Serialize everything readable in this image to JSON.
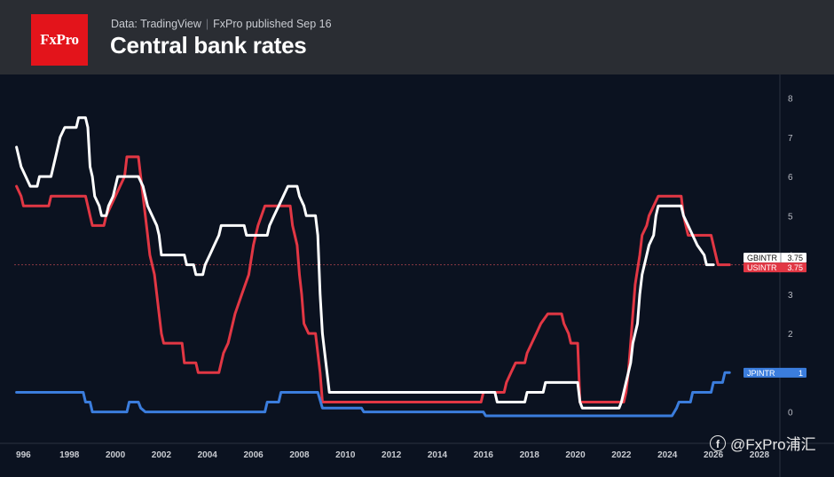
{
  "header": {
    "logo_text": "FxPro",
    "source": "Data: TradingView",
    "published": "FxPro published Sep 16",
    "title": "Central bank rates"
  },
  "watermark": "@FxPro浦汇",
  "colors": {
    "background": "#0b1220",
    "header_bg": "#2a2d33",
    "logo_red": "#e3141b",
    "gbintr": "#ffffff",
    "usintr": "#e23744",
    "jpintr": "#3b7ddd"
  },
  "chart_data": {
    "type": "line",
    "title": "Central bank rates",
    "xlim": [
      1995.6,
      2027.0
    ],
    "ylim": [
      -0.8,
      8.6
    ],
    "x_ticks": [
      "996",
      "1998",
      "2000",
      "2002",
      "2004",
      "2006",
      "2008",
      "2010",
      "2012",
      "2014",
      "2016",
      "2018",
      "2020",
      "2022",
      "2024",
      "2026",
      "2028"
    ],
    "y_ticks": [
      0,
      1,
      2,
      3,
      4,
      5,
      6,
      7,
      8
    ],
    "grid": false,
    "legend": "right-edge value tags",
    "series": [
      {
        "name": "GBINTR",
        "last_value": "3.75",
        "color": "#ffffff",
        "points": [
          [
            1995.7,
            6.75
          ],
          [
            1995.9,
            6.25
          ],
          [
            1996.1,
            6.0
          ],
          [
            1996.3,
            5.75
          ],
          [
            1996.6,
            5.75
          ],
          [
            1996.7,
            6.0
          ],
          [
            1997.2,
            6.0
          ],
          [
            1997.4,
            6.5
          ],
          [
            1997.6,
            7.0
          ],
          [
            1997.8,
            7.25
          ],
          [
            1998.3,
            7.25
          ],
          [
            1998.4,
            7.5
          ],
          [
            1998.7,
            7.5
          ],
          [
            1998.8,
            7.25
          ],
          [
            1998.9,
            6.25
          ],
          [
            1999.0,
            6.0
          ],
          [
            1999.1,
            5.5
          ],
          [
            1999.3,
            5.25
          ],
          [
            1999.4,
            5.0
          ],
          [
            1999.6,
            5.0
          ],
          [
            1999.7,
            5.25
          ],
          [
            1999.9,
            5.5
          ],
          [
            2000.1,
            6.0
          ],
          [
            2001.0,
            6.0
          ],
          [
            2001.2,
            5.75
          ],
          [
            2001.4,
            5.25
          ],
          [
            2001.6,
            5.0
          ],
          [
            2001.8,
            4.75
          ],
          [
            2001.9,
            4.5
          ],
          [
            2002.0,
            4.0
          ],
          [
            2003.0,
            4.0
          ],
          [
            2003.1,
            3.75
          ],
          [
            2003.4,
            3.75
          ],
          [
            2003.5,
            3.5
          ],
          [
            2003.8,
            3.5
          ],
          [
            2003.9,
            3.75
          ],
          [
            2004.1,
            4.0
          ],
          [
            2004.3,
            4.25
          ],
          [
            2004.5,
            4.5
          ],
          [
            2004.6,
            4.75
          ],
          [
            2005.6,
            4.75
          ],
          [
            2005.7,
            4.5
          ],
          [
            2006.6,
            4.5
          ],
          [
            2006.7,
            4.75
          ],
          [
            2006.9,
            5.0
          ],
          [
            2007.1,
            5.25
          ],
          [
            2007.3,
            5.5
          ],
          [
            2007.5,
            5.75
          ],
          [
            2007.9,
            5.75
          ],
          [
            2008.0,
            5.5
          ],
          [
            2008.2,
            5.25
          ],
          [
            2008.3,
            5.0
          ],
          [
            2008.7,
            5.0
          ],
          [
            2008.8,
            4.5
          ],
          [
            2008.9,
            3.0
          ],
          [
            2009.0,
            2.0
          ],
          [
            2009.1,
            1.5
          ],
          [
            2009.2,
            1.0
          ],
          [
            2009.3,
            0.5
          ],
          [
            2016.5,
            0.5
          ],
          [
            2016.6,
            0.25
          ],
          [
            2017.8,
            0.25
          ],
          [
            2017.9,
            0.5
          ],
          [
            2018.6,
            0.5
          ],
          [
            2018.7,
            0.75
          ],
          [
            2020.1,
            0.75
          ],
          [
            2020.2,
            0.25
          ],
          [
            2020.3,
            0.1
          ],
          [
            2021.9,
            0.1
          ],
          [
            2022.0,
            0.25
          ],
          [
            2022.1,
            0.5
          ],
          [
            2022.2,
            0.75
          ],
          [
            2022.4,
            1.25
          ],
          [
            2022.5,
            1.75
          ],
          [
            2022.7,
            2.25
          ],
          [
            2022.8,
            3.0
          ],
          [
            2022.9,
            3.5
          ],
          [
            2023.1,
            4.0
          ],
          [
            2023.2,
            4.25
          ],
          [
            2023.4,
            4.5
          ],
          [
            2023.5,
            5.0
          ],
          [
            2023.6,
            5.25
          ],
          [
            2024.6,
            5.25
          ],
          [
            2024.7,
            5.0
          ],
          [
            2024.9,
            4.75
          ],
          [
            2025.1,
            4.5
          ],
          [
            2025.3,
            4.25
          ],
          [
            2025.6,
            4.0
          ],
          [
            2025.7,
            3.75
          ],
          [
            2026.0,
            3.75
          ]
        ]
      },
      {
        "name": "USINTR",
        "last_value": "3.75",
        "color": "#e23744",
        "points": [
          [
            1995.7,
            5.75
          ],
          [
            1995.9,
            5.5
          ],
          [
            1996.0,
            5.25
          ],
          [
            1997.1,
            5.25
          ],
          [
            1997.2,
            5.5
          ],
          [
            1998.7,
            5.5
          ],
          [
            1998.8,
            5.25
          ],
          [
            1998.9,
            5.0
          ],
          [
            1999.0,
            4.75
          ],
          [
            1999.5,
            4.75
          ],
          [
            1999.6,
            5.0
          ],
          [
            1999.8,
            5.25
          ],
          [
            2000.0,
            5.5
          ],
          [
            2000.2,
            5.75
          ],
          [
            2000.4,
            6.0
          ],
          [
            2000.5,
            6.5
          ],
          [
            2001.0,
            6.5
          ],
          [
            2001.1,
            6.0
          ],
          [
            2001.2,
            5.5
          ],
          [
            2001.3,
            5.0
          ],
          [
            2001.4,
            4.5
          ],
          [
            2001.5,
            4.0
          ],
          [
            2001.7,
            3.5
          ],
          [
            2001.8,
            3.0
          ],
          [
            2001.9,
            2.5
          ],
          [
            2002.0,
            2.0
          ],
          [
            2002.1,
            1.75
          ],
          [
            2002.9,
            1.75
          ],
          [
            2003.0,
            1.25
          ],
          [
            2003.5,
            1.25
          ],
          [
            2003.6,
            1.0
          ],
          [
            2004.5,
            1.0
          ],
          [
            2004.6,
            1.25
          ],
          [
            2004.7,
            1.5
          ],
          [
            2004.9,
            1.75
          ],
          [
            2005.0,
            2.0
          ],
          [
            2005.2,
            2.5
          ],
          [
            2005.5,
            3.0
          ],
          [
            2005.8,
            3.5
          ],
          [
            2006.0,
            4.25
          ],
          [
            2006.2,
            4.75
          ],
          [
            2006.5,
            5.25
          ],
          [
            2007.6,
            5.25
          ],
          [
            2007.7,
            4.75
          ],
          [
            2007.8,
            4.5
          ],
          [
            2007.9,
            4.25
          ],
          [
            2008.0,
            3.5
          ],
          [
            2008.1,
            3.0
          ],
          [
            2008.2,
            2.25
          ],
          [
            2008.4,
            2.0
          ],
          [
            2008.7,
            2.0
          ],
          [
            2008.8,
            1.5
          ],
          [
            2008.9,
            1.0
          ],
          [
            2009.0,
            0.25
          ],
          [
            2015.9,
            0.25
          ],
          [
            2016.0,
            0.5
          ],
          [
            2016.9,
            0.5
          ],
          [
            2017.0,
            0.75
          ],
          [
            2017.2,
            1.0
          ],
          [
            2017.4,
            1.25
          ],
          [
            2017.8,
            1.25
          ],
          [
            2017.9,
            1.5
          ],
          [
            2018.1,
            1.75
          ],
          [
            2018.3,
            2.0
          ],
          [
            2018.5,
            2.25
          ],
          [
            2018.8,
            2.5
          ],
          [
            2019.4,
            2.5
          ],
          [
            2019.5,
            2.25
          ],
          [
            2019.7,
            2.0
          ],
          [
            2019.8,
            1.75
          ],
          [
            2020.1,
            1.75
          ],
          [
            2020.2,
            0.25
          ],
          [
            2022.1,
            0.25
          ],
          [
            2022.2,
            0.5
          ],
          [
            2022.3,
            1.0
          ],
          [
            2022.4,
            1.75
          ],
          [
            2022.5,
            2.5
          ],
          [
            2022.6,
            3.25
          ],
          [
            2022.8,
            4.0
          ],
          [
            2022.9,
            4.5
          ],
          [
            2023.1,
            4.75
          ],
          [
            2023.2,
            5.0
          ],
          [
            2023.4,
            5.25
          ],
          [
            2023.6,
            5.5
          ],
          [
            2024.6,
            5.5
          ],
          [
            2024.7,
            5.0
          ],
          [
            2024.8,
            4.75
          ],
          [
            2024.9,
            4.5
          ],
          [
            2025.9,
            4.5
          ],
          [
            2026.0,
            4.25
          ],
          [
            2026.1,
            4.0
          ],
          [
            2026.2,
            3.75
          ],
          [
            2026.7,
            3.75
          ]
        ]
      },
      {
        "name": "JPINTR",
        "last_value": "1",
        "color": "#3b7ddd",
        "points": [
          [
            1995.7,
            0.5
          ],
          [
            1998.6,
            0.5
          ],
          [
            1998.7,
            0.25
          ],
          [
            1998.9,
            0.25
          ],
          [
            1999.0,
            0.0
          ],
          [
            2000.5,
            0.0
          ],
          [
            2000.6,
            0.25
          ],
          [
            2001.0,
            0.25
          ],
          [
            2001.1,
            0.1
          ],
          [
            2001.3,
            0.0
          ],
          [
            2006.5,
            0.0
          ],
          [
            2006.6,
            0.25
          ],
          [
            2007.1,
            0.25
          ],
          [
            2007.2,
            0.5
          ],
          [
            2008.8,
            0.5
          ],
          [
            2008.9,
            0.3
          ],
          [
            2009.0,
            0.1
          ],
          [
            2010.7,
            0.1
          ],
          [
            2010.8,
            0.0
          ],
          [
            2016.0,
            0.0
          ],
          [
            2016.1,
            -0.1
          ],
          [
            2024.2,
            -0.1
          ],
          [
            2024.3,
            0.0
          ],
          [
            2024.4,
            0.1
          ],
          [
            2024.5,
            0.25
          ],
          [
            2025.0,
            0.25
          ],
          [
            2025.1,
            0.5
          ],
          [
            2025.9,
            0.5
          ],
          [
            2026.0,
            0.75
          ],
          [
            2026.4,
            0.75
          ],
          [
            2026.5,
            1.0
          ],
          [
            2026.7,
            1.0
          ]
        ]
      }
    ]
  }
}
